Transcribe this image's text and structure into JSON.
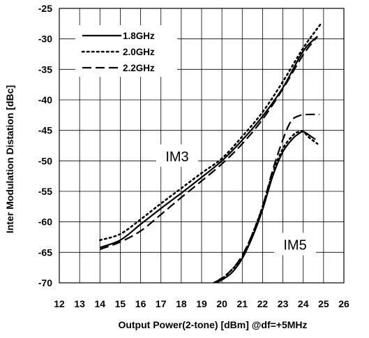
{
  "chart_data": {
    "type": "line",
    "xlabel": "Output Power(2-tone) [dBm] @df=+5MHz",
    "ylabel": "Inter Modulation Distation [dBc]",
    "xlim": [
      12,
      26
    ],
    "ylim": [
      -70,
      -25
    ],
    "x_ticks": [
      "12",
      "13",
      "14",
      "15",
      "16",
      "17",
      "18",
      "19",
      "20",
      "21",
      "22",
      "23",
      "24",
      "25",
      "26"
    ],
    "y_ticks": [
      "-25",
      "-30",
      "-35",
      "-40",
      "-45",
      "-50",
      "-55",
      "-60",
      "-65",
      "-70"
    ],
    "grid": true,
    "legend_position": "top-left",
    "annotations": [
      {
        "text": "IM3",
        "x": 17.8,
        "y": -49.6
      },
      {
        "text": "IM5",
        "x": 23.6,
        "y": -64.1
      }
    ],
    "series": [
      {
        "name": "1.8GHz",
        "group": "IM3",
        "dash": "solid",
        "x": [
          14.0,
          15.0,
          16.0,
          17.0,
          18.0,
          19.0,
          20.0,
          21.0,
          22.0,
          23.0,
          24.0,
          24.7
        ],
        "y": [
          -64.2,
          -63.0,
          -60.4,
          -57.8,
          -55.3,
          -52.7,
          -50.0,
          -46.6,
          -42.7,
          -38.0,
          -32.0,
          -29.6
        ]
      },
      {
        "name": "2.0GHz",
        "group": "IM3",
        "dash": "dotted",
        "x": [
          14.0,
          15.0,
          16.0,
          17.0,
          18.0,
          19.0,
          20.0,
          21.0,
          22.0,
          23.0,
          24.0,
          24.85
        ],
        "y": [
          -63.0,
          -62.0,
          -59.6,
          -57.0,
          -54.5,
          -52.0,
          -49.6,
          -46.0,
          -42.0,
          -37.0,
          -31.5,
          -27.6
        ]
      },
      {
        "name": "2.2GHz",
        "group": "IM3",
        "dash": "dashed",
        "x": [
          14.0,
          15.0,
          16.0,
          17.0,
          18.0,
          19.0,
          20.0,
          21.0,
          22.0,
          23.0,
          24.0,
          24.7
        ],
        "y": [
          -64.5,
          -63.3,
          -61.5,
          -58.8,
          -56.0,
          -53.3,
          -50.5,
          -47.2,
          -43.2,
          -38.2,
          -32.6,
          -29.6
        ]
      },
      {
        "name": "1.8GHz",
        "group": "IM5",
        "dash": "solid",
        "x": [
          19.5,
          20.0,
          20.5,
          21.0,
          21.5,
          22.0,
          22.5,
          23.0,
          23.5,
          23.8,
          24.0,
          24.3,
          24.6
        ],
        "y": [
          -70.3,
          -69.5,
          -68.3,
          -66.0,
          -62.5,
          -58.0,
          -52.5,
          -48.5,
          -46.3,
          -45.5,
          -45.2,
          -45.8,
          -46.5
        ]
      },
      {
        "name": "2.0GHz",
        "group": "IM5",
        "dash": "dotted",
        "x": [
          19.4,
          20.0,
          20.5,
          21.0,
          21.5,
          22.0,
          22.5,
          23.0,
          23.5,
          23.8,
          24.0,
          24.3,
          24.7
        ],
        "y": [
          -70.3,
          -69.3,
          -67.8,
          -65.8,
          -62.0,
          -57.5,
          -52.0,
          -48.0,
          -45.8,
          -45.2,
          -45.2,
          -46.2,
          -47.2
        ]
      },
      {
        "name": "2.2GHz",
        "group": "IM5",
        "dash": "dashed",
        "x": [
          19.0,
          19.5,
          20.0,
          20.5,
          21.0,
          21.5,
          22.0,
          22.5,
          23.0,
          23.4,
          23.8,
          24.2,
          24.8
        ],
        "y": [
          -70.2,
          -70.1,
          -69.2,
          -67.8,
          -65.5,
          -62.0,
          -57.5,
          -51.5,
          -46.5,
          -43.5,
          -42.6,
          -42.4,
          -42.4
        ]
      }
    ],
    "legend": [
      {
        "label": "1.8GHz",
        "dash": "solid"
      },
      {
        "label": "2.0GHz",
        "dash": "dotted"
      },
      {
        "label": "2.2GHz",
        "dash": "dashed"
      }
    ]
  }
}
